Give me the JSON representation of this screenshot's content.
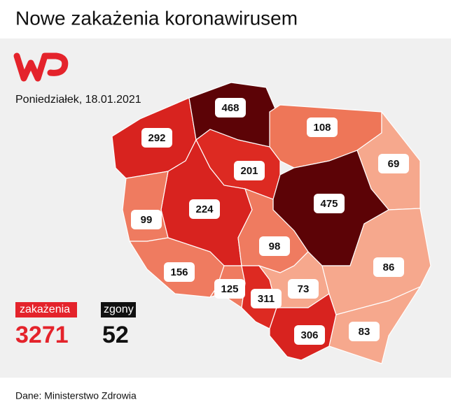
{
  "header": {
    "title": "Nowe zakażenia koronawirusem",
    "date": "Poniedziałek, 18.01.2021"
  },
  "regions": [
    {
      "value": 292,
      "color": "#d8231f"
    },
    {
      "value": 468,
      "color": "#5c0306"
    },
    {
      "value": 108,
      "color": "#ee7658"
    },
    {
      "value": 69,
      "color": "#f6a88d"
    },
    {
      "value": 201,
      "color": "#dd2a22"
    },
    {
      "value": 224,
      "color": "#d8231f"
    },
    {
      "value": 99,
      "color": "#ef7b60"
    },
    {
      "value": 475,
      "color": "#5c0306"
    },
    {
      "value": 98,
      "color": "#ef7b60"
    },
    {
      "value": 156,
      "color": "#ef7b60"
    },
    {
      "value": 125,
      "color": "#ef7b60"
    },
    {
      "value": 311,
      "color": "#dd2a22"
    },
    {
      "value": 73,
      "color": "#f6a88d"
    },
    {
      "value": 306,
      "color": "#d8231f"
    },
    {
      "value": 86,
      "color": "#f6a88d"
    },
    {
      "value": 83,
      "color": "#f6a88d"
    }
  ],
  "totals": {
    "cases_label": "zakażenia",
    "cases": 3271,
    "deaths_label": "zgony",
    "deaths": 52
  },
  "footer": {
    "source": "Dane: Ministerstwo Zdrowia"
  }
}
